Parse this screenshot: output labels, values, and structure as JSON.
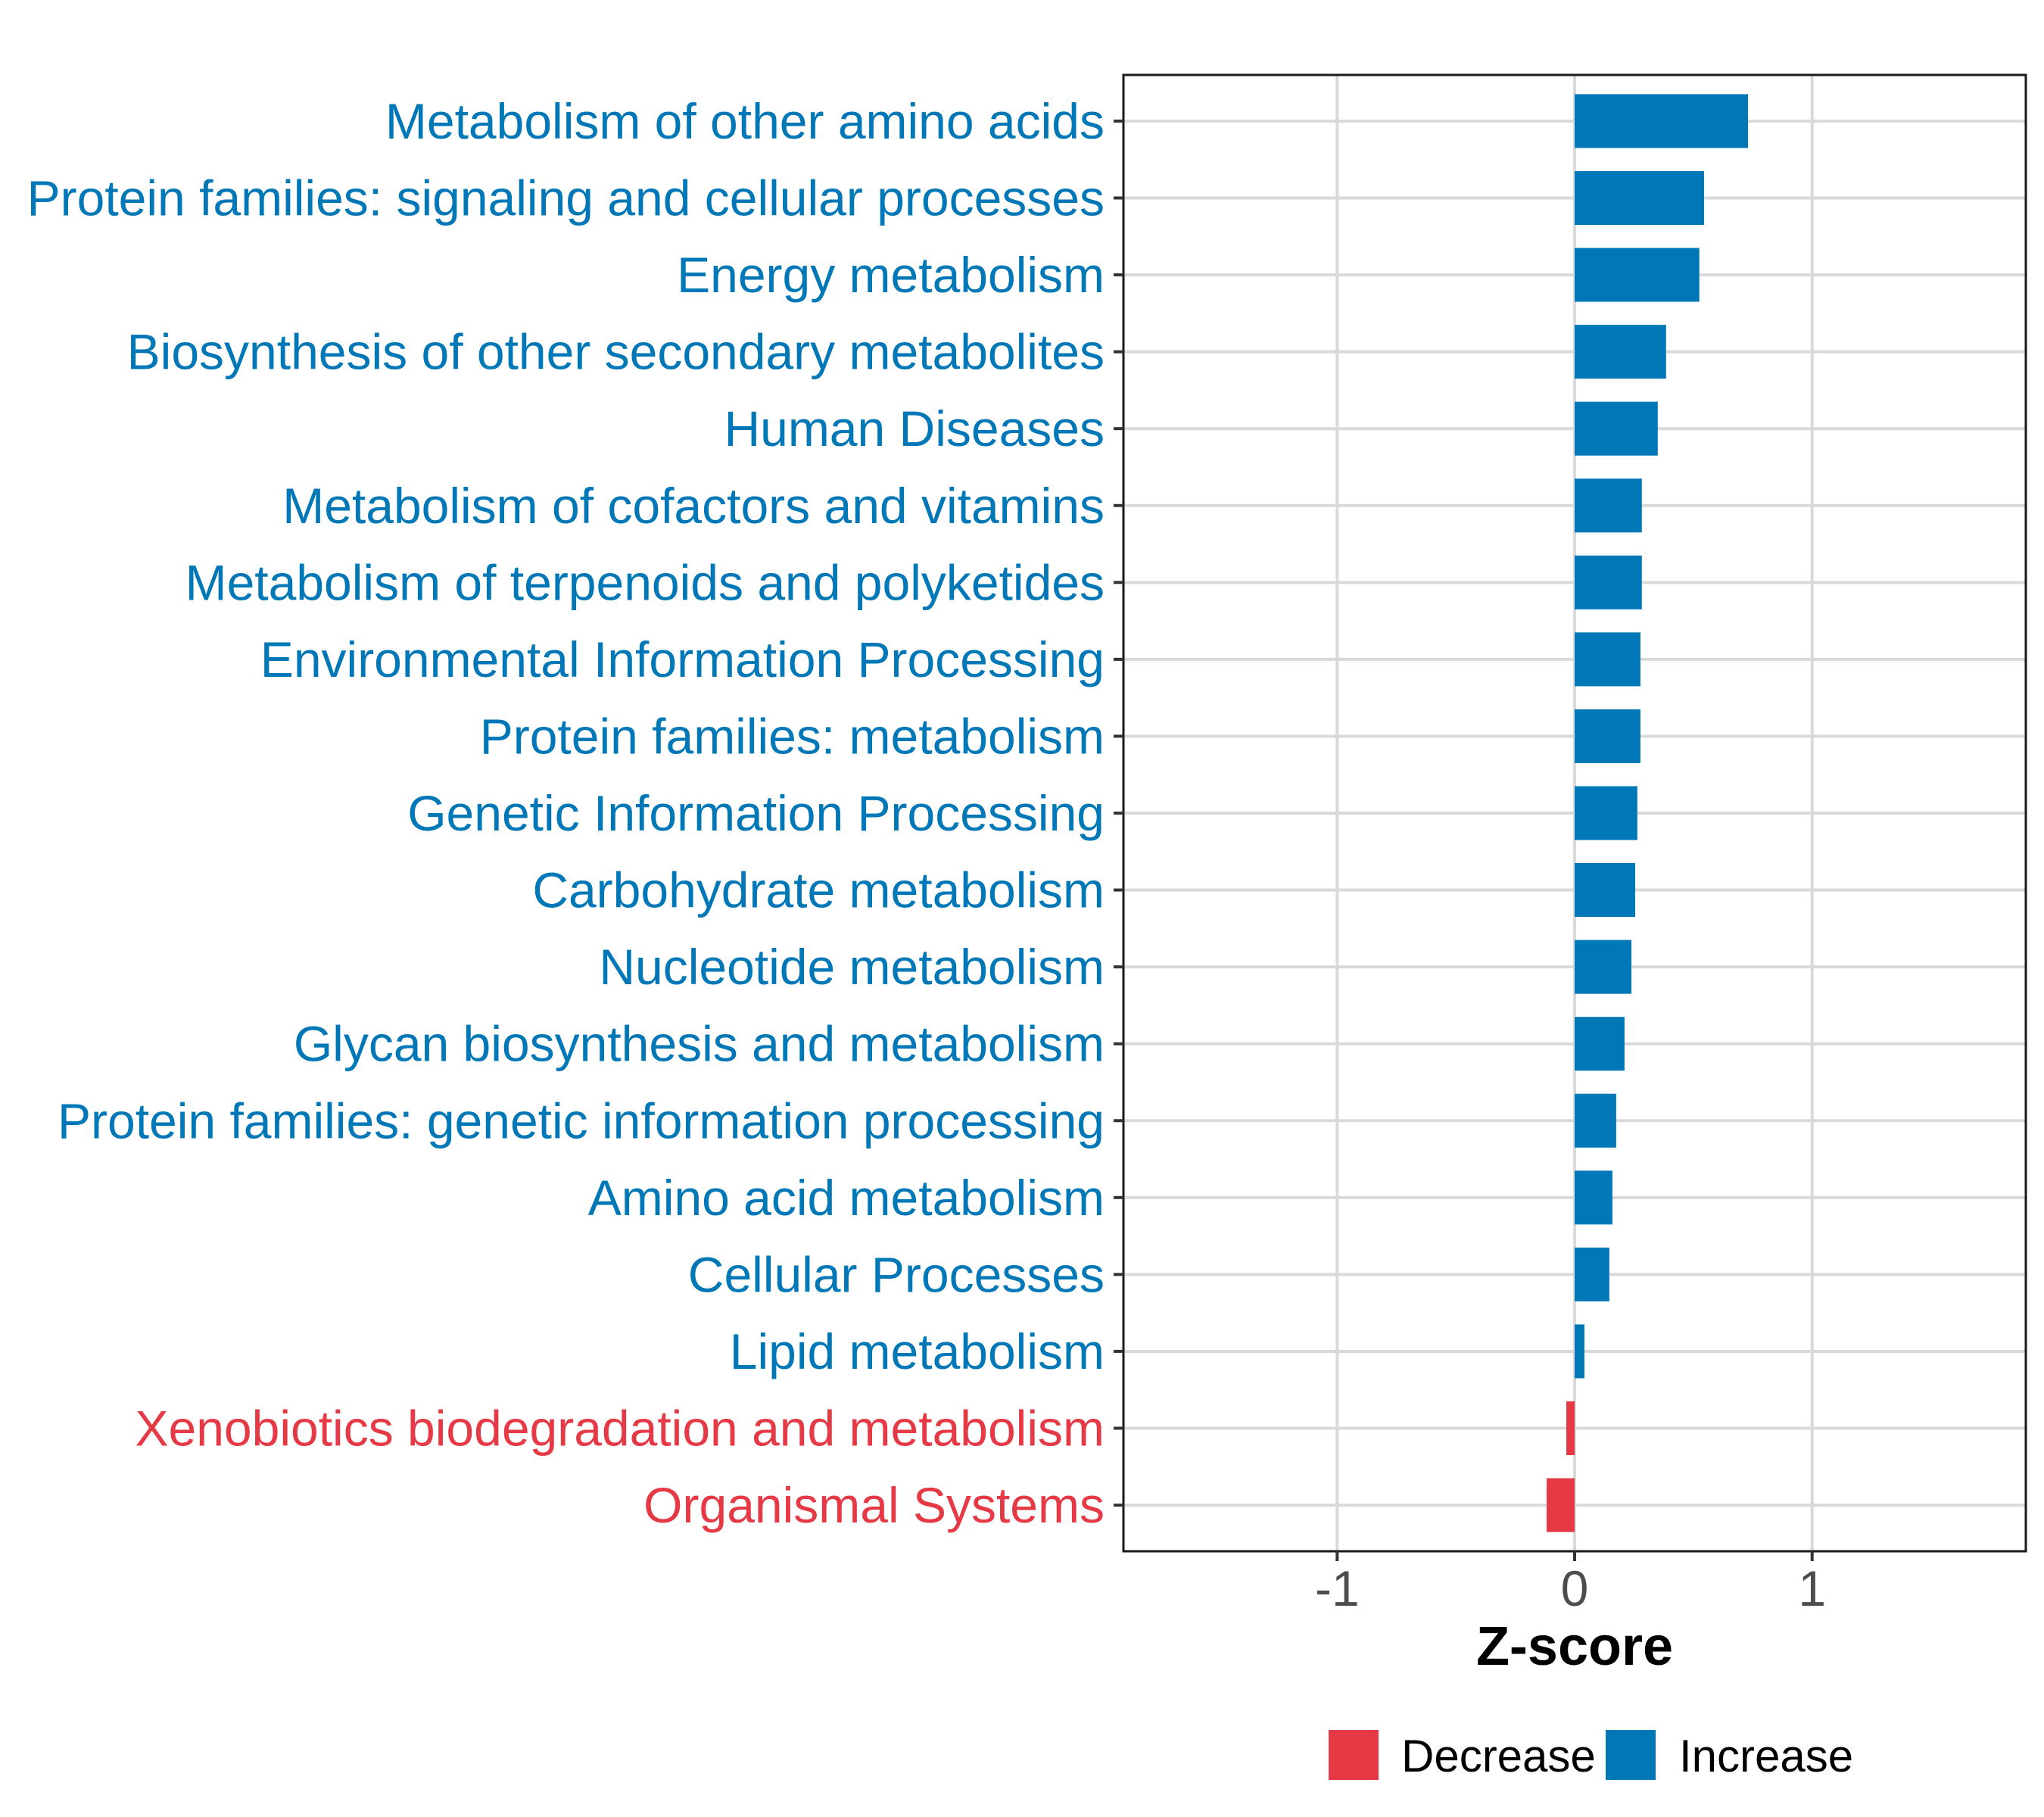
{
  "chart_data": {
    "type": "bar",
    "orientation": "horizontal",
    "title": "",
    "xlabel": "Z-score",
    "ylabel": "",
    "xlim": [
      -1.9,
      1.9
    ],
    "xticks": [
      -1,
      0,
      1
    ],
    "xtick_labels": [
      "-1",
      "0",
      "1"
    ],
    "grid": true,
    "categories": [
      "Metabolism of other amino acids",
      "Protein families: signaling and cellular processes",
      "Energy metabolism",
      "Biosynthesis of other secondary metabolites",
      "Human Diseases",
      "Metabolism of cofactors and vitamins",
      "Metabolism of terpenoids and polyketides",
      "Environmental Information Processing",
      "Protein families: metabolism",
      "Genetic Information Processing",
      "Carbohydrate metabolism",
      "Nucleotide metabolism",
      "Glycan biosynthesis and metabolism",
      "Protein families: genetic information processing",
      "Amino acid metabolism",
      "Cellular Processes",
      "Lipid metabolism",
      "Xenobiotics biodegradation and metabolism",
      "Organismal Systems"
    ],
    "values": [
      0.73,
      0.545,
      0.525,
      0.385,
      0.35,
      0.283,
      0.283,
      0.277,
      0.277,
      0.264,
      0.255,
      0.239,
      0.21,
      0.175,
      0.159,
      0.146,
      0.041,
      -0.035,
      -0.118
    ],
    "groups": [
      "Increase",
      "Increase",
      "Increase",
      "Increase",
      "Increase",
      "Increase",
      "Increase",
      "Increase",
      "Increase",
      "Increase",
      "Increase",
      "Increase",
      "Increase",
      "Increase",
      "Increase",
      "Increase",
      "Increase",
      "Decrease",
      "Decrease"
    ],
    "legend": {
      "position": "bottom",
      "entries": [
        {
          "label": "Decrease",
          "color": "#E63946"
        },
        {
          "label": "Increase",
          "color": "#0077B6"
        }
      ]
    },
    "colors": {
      "Decrease": "#E63946",
      "Increase": "#0077B6"
    }
  }
}
